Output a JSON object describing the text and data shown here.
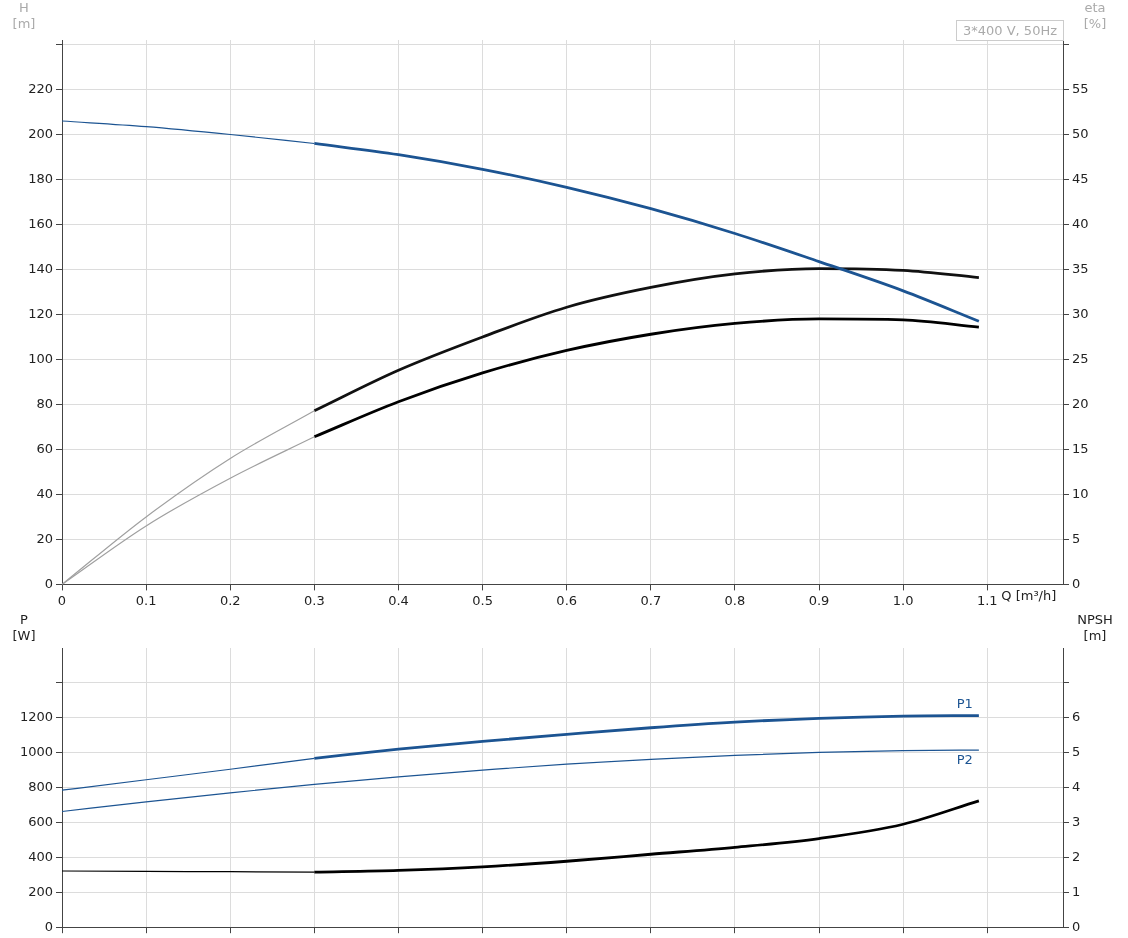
{
  "chart_data": [
    {
      "type": "line",
      "xlabel": "Q [m³/h]",
      "ylabel": "H\n[m]",
      "y2label": "eta\n[%]",
      "annotations": [
        "3*400 V, 50Hz"
      ],
      "grid": true,
      "xlim": [
        0,
        1.19
      ],
      "xticks": [
        0,
        0.1,
        0.2,
        0.3,
        0.4,
        0.5,
        0.6,
        0.7,
        0.8,
        0.9,
        {
          "value": 1,
          "label": "1.0"
        },
        1.1
      ],
      "ylim": [
        0,
        242
      ],
      "yticks": [
        0,
        20,
        40,
        60,
        80,
        100,
        120,
        140,
        160,
        180,
        200,
        220,
        {
          "value": 240,
          "label": null
        }
      ],
      "y2lim": [
        0,
        60.5
      ],
      "y2ticks": [
        0,
        5,
        10,
        15,
        20,
        25,
        30,
        35,
        40,
        45,
        50,
        55,
        {
          "value": 60,
          "label": null
        }
      ],
      "series": [
        {
          "color": "#1c5492",
          "x": [
            0,
            0.1,
            0.2,
            0.3
          ],
          "values": [
            206,
            203.5,
            200,
            196
          ]
        },
        {
          "color": "#1c5492",
          "x": [
            0.3,
            0.4,
            0.5,
            0.6,
            0.7,
            0.8,
            0.9,
            1.0,
            1.09
          ],
          "values": [
            196,
            191,
            184.5,
            176.5,
            167,
            156,
            143.5,
            130.5,
            117
          ]
        },
        {
          "color": "#a0a0a0",
          "axis": "y2",
          "x": [
            0,
            0.1,
            0.2,
            0.3
          ],
          "values": [
            0,
            7.5,
            14,
            19.3
          ]
        },
        {
          "color": "#111111",
          "axis": "y2",
          "x": [
            0.3,
            0.4,
            0.5,
            0.6,
            0.7,
            0.8,
            0.9,
            1.0,
            1.09
          ],
          "values": [
            19.3,
            23.8,
            27.5,
            30.8,
            33,
            34.5,
            35.1,
            34.9,
            34.1
          ]
        },
        {
          "color": "#a0a0a0",
          "axis": "y2",
          "x": [
            0,
            0.1,
            0.2,
            0.3
          ],
          "values": [
            0,
            6.5,
            11.8,
            16.4
          ]
        },
        {
          "color": "#000000",
          "axis": "y2",
          "x": [
            0.3,
            0.4,
            0.5,
            0.6,
            0.7,
            0.8,
            0.9,
            1.0,
            1.09
          ],
          "values": [
            16.4,
            20.3,
            23.5,
            26,
            27.8,
            29,
            29.5,
            29.4,
            28.6
          ]
        }
      ]
    },
    {
      "type": "line",
      "ylabel": "P\n[W]",
      "y2label": "NPSH\n[m]",
      "grid": true,
      "tick_labels": "y",
      "xlim": [
        0,
        1.19
      ],
      "xticks": [
        0,
        0.1,
        0.2,
        0.3,
        0.4,
        0.5,
        0.6,
        0.7,
        0.8,
        0.9,
        1,
        1.1
      ],
      "ylim": [
        0,
        1600
      ],
      "yticks": [
        0,
        200,
        400,
        600,
        800,
        1000,
        1200,
        {
          "value": 1400,
          "label": null
        }
      ],
      "y2lim": [
        0,
        8
      ],
      "y2ticks": [
        0,
        1,
        2,
        3,
        4,
        5,
        6,
        {
          "value": 7,
          "label": null
        }
      ],
      "series": [
        {
          "color": "#1c5492",
          "x": [
            0,
            0.1,
            0.2,
            0.3
          ],
          "values": [
            785,
            845,
            905,
            968
          ]
        },
        {
          "name": "P1",
          "color": "#1c5492",
          "x": [
            0.3,
            0.4,
            0.5,
            0.6,
            0.7,
            0.8,
            0.9,
            1.0,
            1.09
          ],
          "values": [
            968,
            1020,
            1065,
            1105,
            1143,
            1175,
            1197,
            1210,
            1213
          ]
        },
        {
          "name": "P2",
          "color": "#1c5492",
          "x": [
            0,
            0.1,
            0.2,
            0.3,
            0.4,
            0.5,
            0.6,
            0.7,
            0.8,
            0.9,
            1.0,
            1.09
          ],
          "values": [
            663,
            718,
            770,
            818,
            862,
            900,
            935,
            962,
            985,
            1002,
            1012,
            1015
          ]
        },
        {
          "color": "#000000",
          "axis": "y2",
          "x": [
            0,
            0.1,
            0.2,
            0.3
          ],
          "values": [
            1.61,
            1.6,
            1.59,
            1.58
          ]
        },
        {
          "color": "#000000",
          "axis": "y2",
          "x": [
            0.3,
            0.4,
            0.5,
            0.6,
            0.7,
            0.8,
            0.9,
            1.0,
            1.09
          ],
          "values": [
            1.58,
            1.63,
            1.73,
            1.89,
            2.09,
            2.29,
            2.54,
            2.95,
            3.62
          ]
        }
      ]
    }
  ]
}
